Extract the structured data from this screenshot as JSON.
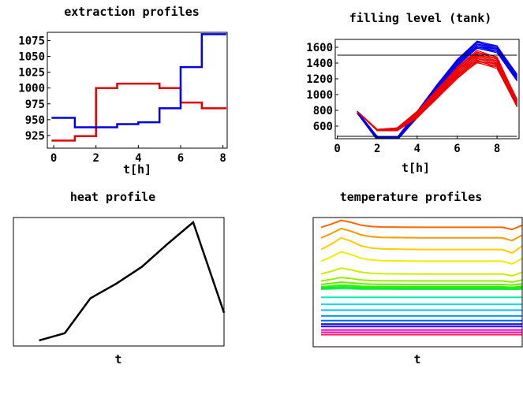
{
  "chart_data": [
    {
      "id": "extraction",
      "type": "line",
      "step": true,
      "title": "extraction  profiles",
      "xlabel": "t[h]",
      "xlim": [
        -0.3,
        8.2
      ],
      "ylim": [
        905,
        1088
      ],
      "xticks": [
        0,
        2,
        4,
        6,
        8
      ],
      "yticks": [
        925,
        950,
        975,
        1000,
        1025,
        1050,
        1075
      ],
      "series": [
        {
          "name": "red",
          "color": "#e00000",
          "x": [
            -0.1,
            1,
            2,
            3,
            4,
            5,
            6,
            7,
            8
          ],
          "values": [
            917,
            924,
            1000,
            1007,
            1007,
            1000,
            977,
            968,
            968
          ]
        },
        {
          "name": "blue",
          "color": "#0000e0",
          "x": [
            -0.1,
            1,
            2,
            3,
            4,
            5,
            6,
            7,
            8
          ],
          "values": [
            953,
            938,
            938,
            943,
            946,
            968,
            1033,
            1085,
            1085
          ]
        }
      ]
    },
    {
      "id": "filling",
      "type": "line",
      "title": "filling level (tank)",
      "xlabel": "t[h]",
      "xlim": [
        -0.1,
        9.1
      ],
      "ylim": [
        440,
        1700
      ],
      "xticks": [
        0,
        2,
        4,
        6,
        8
      ],
      "yticks": [
        600,
        800,
        1000,
        1200,
        1400,
        1600
      ],
      "hlines": [
        1500,
        470
      ],
      "x": [
        1,
        2,
        3,
        4,
        5,
        6,
        7,
        8,
        9
      ],
      "bundles": [
        {
          "name": "blue",
          "color": "#0000ee",
          "count": 16,
          "low": [
            760,
            420,
            420,
            700,
            1040,
            1360,
            1580,
            1530,
            1170
          ],
          "high": [
            790,
            470,
            460,
            790,
            1130,
            1450,
            1680,
            1620,
            1260
          ]
        },
        {
          "name": "red",
          "color": "#ee0000",
          "count": 24,
          "low": [
            780,
            540,
            540,
            700,
            950,
            1200,
            1400,
            1330,
            840
          ],
          "high": [
            790,
            560,
            580,
            790,
            1070,
            1350,
            1560,
            1480,
            940
          ]
        }
      ]
    },
    {
      "id": "heat",
      "type": "line",
      "title": "heat  profile",
      "xlabel": "t",
      "xlim": [
        0,
        8.2
      ],
      "ylim": [
        0,
        1
      ],
      "series": [
        {
          "name": "heat",
          "color": "#000000",
          "x": [
            1,
            2,
            3,
            4,
            5,
            6,
            7,
            8.2
          ],
          "values": [
            0.02,
            0.08,
            0.37,
            0.49,
            0.63,
            0.82,
            1.0,
            0.25
          ]
        }
      ]
    },
    {
      "id": "temperature",
      "type": "line",
      "title": "temperature   profiles",
      "xlabel": "t",
      "xlim": [
        0,
        10
      ],
      "ylim": [
        0,
        1
      ],
      "shape_x": [
        0,
        0.5,
        1,
        1.5,
        2,
        2.5,
        3,
        4,
        5,
        6,
        7,
        8,
        9,
        9.5,
        10
      ],
      "shape": [
        0,
        0.45,
        1,
        0.7,
        0.3,
        0.12,
        0.05,
        0.02,
        0,
        0,
        0,
        0,
        0,
        -0.3,
        0.3
      ],
      "curves": [
        {
          "level": 0.07,
          "amp": 0.0,
          "color": "#ff0099"
        },
        {
          "level": 0.05,
          "amp": 0.0,
          "color": "#ff2266"
        },
        {
          "level": 0.09,
          "amp": 0.0,
          "color": "#ee00ee"
        },
        {
          "level": 0.12,
          "amp": 0.0,
          "color": "#3300ff"
        },
        {
          "level": 0.14,
          "amp": 0.0,
          "color": "#0000ee"
        },
        {
          "level": 0.17,
          "amp": 0.0,
          "color": "#0066ff"
        },
        {
          "level": 0.21,
          "amp": 0.0,
          "color": "#0099ff"
        },
        {
          "level": 0.26,
          "amp": 0.0,
          "color": "#00bbff"
        },
        {
          "level": 0.31,
          "amp": 0.0,
          "color": "#00ddee"
        },
        {
          "level": 0.37,
          "amp": 0.0,
          "color": "#00eeaa"
        },
        {
          "level": 0.44,
          "amp": 0.005,
          "color": "#00ee55"
        },
        {
          "level": 0.45,
          "amp": 0.01,
          "color": "#11ee11"
        },
        {
          "level": 0.46,
          "amp": 0.015,
          "color": "#33ee00"
        },
        {
          "level": 0.48,
          "amp": 0.02,
          "color": "#66ee00"
        },
        {
          "level": 0.51,
          "amp": 0.03,
          "color": "#99ee00"
        },
        {
          "level": 0.57,
          "amp": 0.05,
          "color": "#ccee00"
        },
        {
          "level": 0.68,
          "amp": 0.08,
          "color": "#eeee00"
        },
        {
          "level": 0.78,
          "amp": 0.1,
          "color": "#ffcc00"
        },
        {
          "level": 0.88,
          "amp": 0.08,
          "color": "#ff9900"
        },
        {
          "level": 0.97,
          "amp": 0.06,
          "color": "#ff6600"
        }
      ]
    }
  ]
}
